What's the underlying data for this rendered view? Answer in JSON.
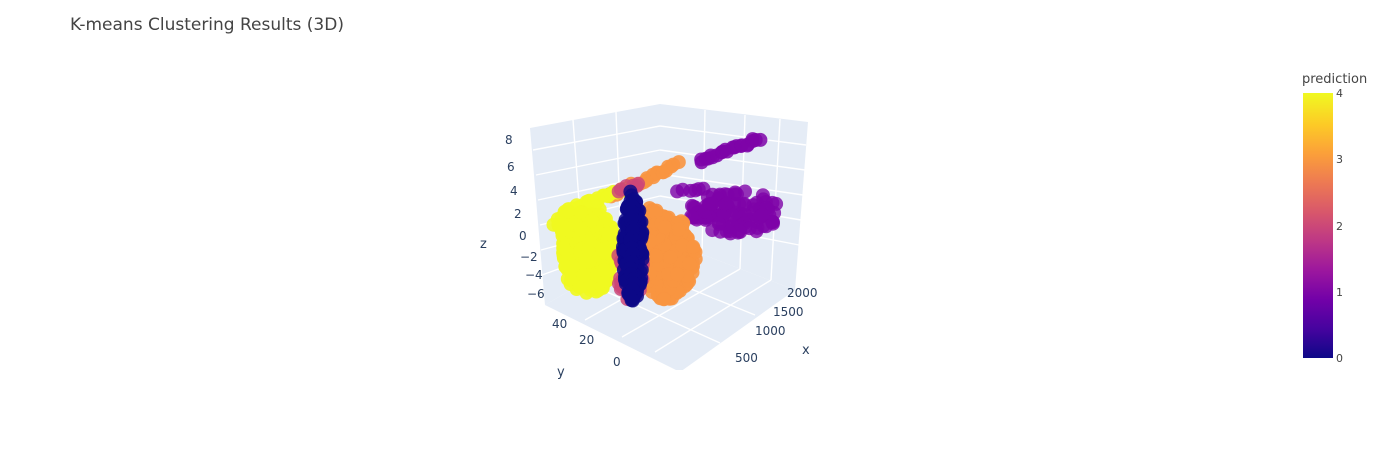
{
  "chart_data": {
    "type": "scatter3d",
    "title": "K-means Clustering Results (3D)",
    "axes": {
      "x": {
        "label": "x",
        "ticks": [
          "500",
          "1000",
          "1500",
          "2000"
        ]
      },
      "y": {
        "label": "y",
        "ticks": [
          "0",
          "20",
          "40"
        ]
      },
      "z": {
        "label": "z",
        "ticks": [
          "8",
          "6",
          "4",
          "2",
          "0",
          "−2",
          "−4",
          "−6"
        ]
      }
    },
    "colorbar": {
      "title": "prediction",
      "range": [
        0,
        4
      ],
      "ticks": [
        "0",
        "1",
        "2",
        "3",
        "4"
      ],
      "colorscale": [
        "#0d0887",
        "#46039f",
        "#7201a8",
        "#9c179e",
        "#bd3786",
        "#d8576b",
        "#ed7953",
        "#fb9f3a",
        "#fdca26",
        "#f0f921"
      ]
    },
    "clusters": [
      {
        "prediction": 0,
        "color": "#0d0887"
      },
      {
        "prediction": 1,
        "color": "#7e03a8"
      },
      {
        "prediction": 2,
        "color": "#cc4778"
      },
      {
        "prediction": 3,
        "color": "#f89540"
      },
      {
        "prediction": 4,
        "color": "#f0f921"
      }
    ],
    "scene": {
      "background": "#e5ecf6",
      "gridcolor": "#ffffff"
    }
  }
}
